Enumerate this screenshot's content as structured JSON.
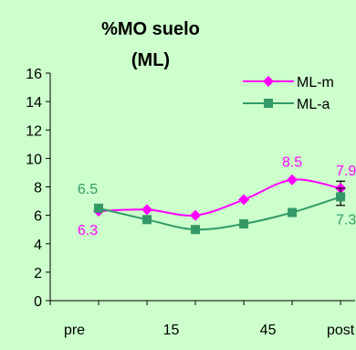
{
  "chart_data": {
    "type": "line",
    "title": [
      "%MO suelo",
      "(ML)"
    ],
    "xlabel": "",
    "ylabel": "",
    "ylim": [
      0,
      16
    ],
    "y_ticks": [
      0,
      2,
      4,
      6,
      8,
      10,
      12,
      14,
      16
    ],
    "x_tick_labels": [
      "pre",
      "15",
      "45",
      "post"
    ],
    "x": [
      1,
      2,
      3,
      4,
      5,
      6
    ],
    "legend_position": "top-right",
    "grid": false,
    "series": [
      {
        "name": "ML-m",
        "color": "#ff00ff",
        "marker": "diamond",
        "values": [
          6.3,
          6.4,
          6.0,
          7.1,
          8.5,
          7.9
        ],
        "labels": {
          "0": "6.3",
          "4": "8.5",
          "5": "7.9"
        },
        "errors": [
          null,
          null,
          null,
          null,
          null,
          0.5
        ]
      },
      {
        "name": "ML-a",
        "color": "#339966",
        "marker": "square",
        "values": [
          6.5,
          5.7,
          5.0,
          5.4,
          6.2,
          7.3
        ],
        "labels": {
          "0": "6.5",
          "5": "7.3"
        },
        "errors": [
          null,
          null,
          null,
          null,
          null,
          0.6
        ]
      }
    ]
  }
}
